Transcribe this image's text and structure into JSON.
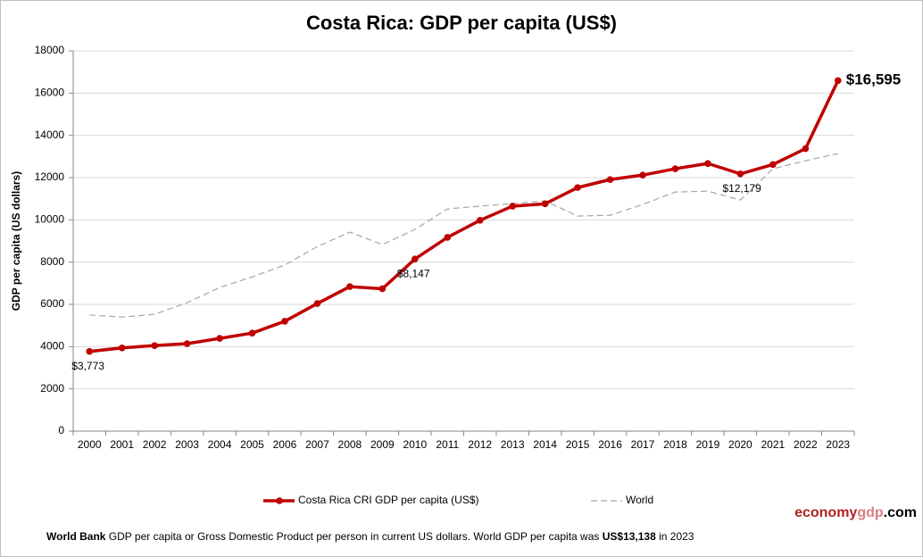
{
  "chart_data": {
    "type": "line",
    "title": "Costa Rica: GDP per capita (US$)",
    "y_label": "GDP per capita (US dollars)",
    "categories": [
      "2000",
      "2001",
      "2002",
      "2003",
      "2004",
      "2005",
      "2006",
      "2007",
      "2008",
      "2009",
      "2010",
      "2011",
      "2012",
      "2013",
      "2014",
      "2015",
      "2016",
      "2017",
      "2018",
      "2019",
      "2020",
      "2021",
      "2022",
      "2023"
    ],
    "series": [
      {
        "name": "Costa Rica CRI GDP per capita (US$)",
        "color": "#c00000",
        "style": "solid-markers",
        "values": [
          3773,
          3940,
          4050,
          4140,
          4390,
          4640,
          5200,
          6040,
          6840,
          6740,
          8147,
          9170,
          9980,
          10650,
          10760,
          11530,
          11910,
          12120,
          12420,
          12670,
          12179,
          12620,
          13370,
          16595
        ],
        "value_labels": [
          "$3,773",
          null,
          null,
          null,
          null,
          null,
          null,
          null,
          null,
          null,
          "$8,147",
          null,
          null,
          null,
          null,
          null,
          null,
          null,
          null,
          null,
          "$12,179",
          null,
          null,
          "$16,595"
        ]
      },
      {
        "name": "World",
        "color": "#a6a6a6",
        "style": "dashed",
        "values": [
          5500,
          5400,
          5530,
          6080,
          6800,
          7300,
          7860,
          8740,
          9420,
          8830,
          9550,
          10520,
          10650,
          10770,
          10900,
          10180,
          10220,
          10730,
          11320,
          11360,
          10940,
          12420,
          12800,
          13138
        ]
      }
    ],
    "ylim": [
      0,
      18000
    ],
    "yticks": [
      0,
      2000,
      4000,
      6000,
      8000,
      10000,
      12000,
      14000,
      16000,
      18000
    ],
    "grid": true,
    "legend": "bottom",
    "footer": {
      "source": "World Bank",
      "text": "GDP per capita or Gross Domestic Product per person in current US dollars.",
      "text2": "World GDP per capita was",
      "value": "US$13,138",
      "text3": "in 2023"
    },
    "brand": {
      "part1": "economy",
      "part2": "gdp",
      "part3": ".com"
    }
  }
}
